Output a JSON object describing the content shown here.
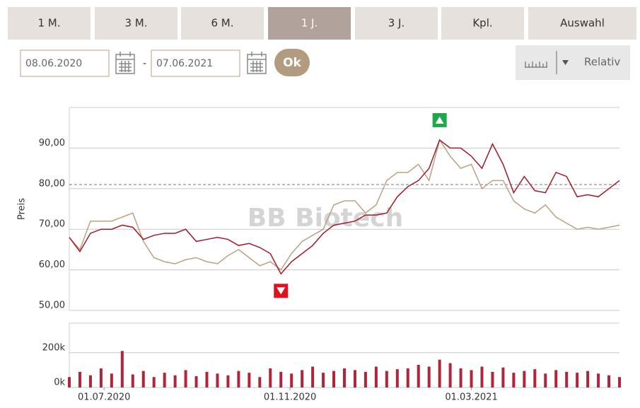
{
  "controls": {
    "tabs": [
      "1 M.",
      "3 M.",
      "6 M.",
      "1 J.",
      "3 J.",
      "Kpl.",
      "Auswahl"
    ],
    "selected_tab": 3,
    "date_from": "08.06.2020",
    "separator": "-",
    "date_to": "07.06.2021",
    "ok": "Ok",
    "mode": "Relativ"
  },
  "chart_data": [
    {
      "type": "line",
      "watermark": "BB Biotech",
      "y_label": "Preis",
      "x": [
        "08.06.2020",
        "15.06.2020",
        "22.06.2020",
        "29.06.2020",
        "06.07.2020",
        "13.07.2020",
        "20.07.2020",
        "27.07.2020",
        "03.08.2020",
        "10.08.2020",
        "17.08.2020",
        "24.08.2020",
        "31.08.2020",
        "07.09.2020",
        "14.09.2020",
        "21.09.2020",
        "28.09.2020",
        "05.10.2020",
        "12.10.2020",
        "19.10.2020",
        "26.10.2020",
        "02.11.2020",
        "09.11.2020",
        "16.11.2020",
        "23.11.2020",
        "30.11.2020",
        "07.12.2020",
        "14.12.2020",
        "21.12.2020",
        "28.12.2020",
        "04.01.2021",
        "11.01.2021",
        "18.01.2021",
        "25.01.2021",
        "01.02.2021",
        "08.02.2021",
        "15.02.2021",
        "22.02.2021",
        "01.03.2021",
        "08.03.2021",
        "15.03.2021",
        "22.03.2021",
        "29.03.2021",
        "05.04.2021",
        "12.04.2021",
        "19.04.2021",
        "26.04.2021",
        "03.05.2021",
        "10.05.2021",
        "17.05.2021",
        "24.05.2021",
        "31.05.2021",
        "07.06.2021"
      ],
      "series": [
        {
          "color": "#a3192c",
          "values": [
            68,
            64.5,
            69,
            70,
            70,
            71,
            70.5,
            67.5,
            68.5,
            69,
            69,
            70,
            67,
            67.5,
            68,
            67.5,
            66,
            66.5,
            65.5,
            64,
            59,
            62,
            64,
            66,
            69,
            71,
            71.5,
            72,
            73.5,
            73.5,
            74,
            78,
            80.5,
            82,
            85,
            92,
            90,
            90,
            88,
            85,
            91,
            86,
            79,
            83,
            79.5,
            79,
            84,
            83,
            78,
            78.5,
            78,
            80,
            82
          ]
        },
        {
          "color": "#b9a283",
          "values": [
            68,
            65,
            72,
            72,
            72,
            73,
            74,
            67,
            63,
            62,
            61.5,
            62.5,
            63,
            62,
            61.5,
            63.5,
            65,
            63,
            61,
            62,
            60,
            64,
            67,
            68.5,
            70,
            76,
            77,
            77,
            74,
            76,
            82,
            84,
            84,
            86,
            82,
            92,
            88,
            85,
            86,
            80,
            82,
            82,
            77,
            75,
            74,
            76,
            73,
            71.5,
            70,
            70.5,
            70,
            70.5,
            71
          ]
        }
      ],
      "xlim": [
        "08.06.2020",
        "07.06.2021"
      ],
      "ylim": [
        50,
        100
      ],
      "yticks": [
        {
          "value": 50,
          "label": "50,00"
        },
        {
          "value": 60,
          "label": "60,00"
        },
        {
          "value": 70,
          "label": "70,00"
        },
        {
          "value": 80,
          "label": "80,00"
        },
        {
          "value": 90,
          "label": "90,00"
        }
      ],
      "reference_value": 81,
      "grid": true
    },
    {
      "type": "bar",
      "x": [
        "08.06.2020",
        "15.06.2020",
        "22.06.2020",
        "29.06.2020",
        "06.07.2020",
        "13.07.2020",
        "20.07.2020",
        "27.07.2020",
        "03.08.2020",
        "10.08.2020",
        "17.08.2020",
        "24.08.2020",
        "31.08.2020",
        "07.09.2020",
        "14.09.2020",
        "21.09.2020",
        "28.09.2020",
        "05.10.2020",
        "12.10.2020",
        "19.10.2020",
        "26.10.2020",
        "02.11.2020",
        "09.11.2020",
        "16.11.2020",
        "23.11.2020",
        "30.11.2020",
        "07.12.2020",
        "14.12.2020",
        "21.12.2020",
        "28.12.2020",
        "04.01.2021",
        "11.01.2021",
        "18.01.2021",
        "25.01.2021",
        "01.02.2021",
        "08.02.2021",
        "15.02.2021",
        "22.02.2021",
        "01.03.2021",
        "08.03.2021",
        "15.03.2021",
        "22.03.2021",
        "29.03.2021",
        "05.04.2021",
        "12.04.2021",
        "19.04.2021",
        "26.04.2021",
        "03.05.2021",
        "10.05.2021",
        "17.05.2021",
        "24.05.2021",
        "31.05.2021",
        "07.06.2021"
      ],
      "values": [
        60000,
        90000,
        70000,
        110000,
        80000,
        210000,
        75000,
        95000,
        60000,
        85000,
        70000,
        100000,
        65000,
        90000,
        80000,
        70000,
        95000,
        85000,
        60000,
        110000,
        90000,
        80000,
        100000,
        120000,
        85000,
        95000,
        110000,
        100000,
        90000,
        120000,
        95000,
        105000,
        110000,
        130000,
        120000,
        160000,
        140000,
        110000,
        100000,
        120000,
        90000,
        115000,
        85000,
        95000,
        105000,
        80000,
        100000,
        90000,
        85000,
        95000,
        80000,
        70000,
        60000
      ],
      "color": "#b2243a",
      "xlim": [
        "08.06.2020",
        "07.06.2021"
      ],
      "xticks": [
        "01.07.2020",
        "01.11.2020",
        "01.03.2021"
      ],
      "ylim": [
        0,
        370000
      ],
      "yticks": [
        {
          "value": 0,
          "label": "0k"
        },
        {
          "value": 200000,
          "label": "200k"
        }
      ],
      "grid": true
    }
  ]
}
